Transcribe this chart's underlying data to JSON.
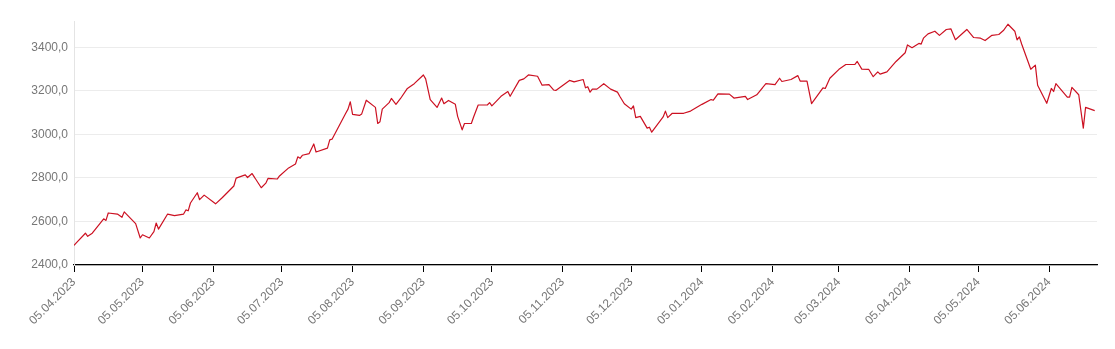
{
  "chart_data": {
    "type": "line",
    "color": "#cc1122",
    "marker": "none",
    "line_style": "solid",
    "grid": "y",
    "x": [
      "2023-04-05",
      "2023-04-06",
      "2023-04-10",
      "2023-04-11",
      "2023-04-13",
      "2023-04-18",
      "2023-04-19",
      "2023-04-20",
      "2023-04-24",
      "2023-04-26",
      "2023-04-27",
      "2023-05-02",
      "2023-05-04",
      "2023-05-05",
      "2023-05-08",
      "2023-05-10",
      "2023-05-11",
      "2023-05-12",
      "2023-05-16",
      "2023-05-19",
      "2023-05-23",
      "2023-05-24",
      "2023-05-25",
      "2023-05-26",
      "2023-05-29",
      "2023-05-30",
      "2023-06-01",
      "2023-06-06",
      "2023-06-09",
      "2023-06-14",
      "2023-06-15",
      "2023-06-19",
      "2023-06-20",
      "2023-06-22",
      "2023-06-26",
      "2023-06-28",
      "2023-06-29",
      "2023-07-03",
      "2023-07-04",
      "2023-07-08",
      "2023-07-11",
      "2023-07-12",
      "2023-07-13",
      "2023-07-14",
      "2023-07-17",
      "2023-07-19",
      "2023-07-20",
      "2023-07-25",
      "2023-07-26",
      "2023-07-27",
      "2023-08-02",
      "2023-08-03",
      "2023-08-04",
      "2023-08-05",
      "2023-08-08",
      "2023-08-09",
      "2023-08-11",
      "2023-08-15",
      "2023-08-16",
      "2023-08-17",
      "2023-08-18",
      "2023-08-21",
      "2023-08-22",
      "2023-08-24",
      "2023-08-26",
      "2023-08-29",
      "2023-09-01",
      "2023-09-05",
      "2023-09-06",
      "2023-09-08",
      "2023-09-11",
      "2023-09-13",
      "2023-09-14",
      "2023-09-16",
      "2023-09-19",
      "2023-09-20",
      "2023-09-22",
      "2023-09-23",
      "2023-09-26",
      "2023-09-27",
      "2023-09-29",
      "2023-10-03",
      "2023-10-04",
      "2023-10-05",
      "2023-10-09",
      "2023-10-12",
      "2023-10-13",
      "2023-10-17",
      "2023-10-19",
      "2023-10-21",
      "2023-10-25",
      "2023-10-27",
      "2023-10-30",
      "2023-11-01",
      "2023-11-02",
      "2023-11-08",
      "2023-11-10",
      "2023-11-14",
      "2023-11-15",
      "2023-11-16",
      "2023-11-17",
      "2023-11-18",
      "2023-11-20",
      "2023-11-23",
      "2023-11-26",
      "2023-11-29",
      "2023-11-30",
      "2023-12-02",
      "2023-12-05",
      "2023-12-06",
      "2023-12-07",
      "2023-12-09",
      "2023-12-12",
      "2023-12-13",
      "2023-12-14",
      "2023-12-19",
      "2023-12-20",
      "2023-12-21",
      "2023-12-23",
      "2023-12-28",
      "2023-12-31",
      "2024-01-05",
      "2024-01-09",
      "2024-01-10",
      "2024-01-12",
      "2024-01-16",
      "2024-01-17",
      "2024-01-19",
      "2024-01-24",
      "2024-01-25",
      "2024-01-29",
      "2024-02-02",
      "2024-02-06",
      "2024-02-08",
      "2024-02-09",
      "2024-02-13",
      "2024-02-16",
      "2024-02-17",
      "2024-02-20",
      "2024-02-22",
      "2024-02-27",
      "2024-02-28",
      "2024-03-01",
      "2024-03-05",
      "2024-03-08",
      "2024-03-12",
      "2024-03-13",
      "2024-03-15",
      "2024-03-18",
      "2024-03-20",
      "2024-03-22",
      "2024-03-23",
      "2024-03-26",
      "2024-03-30",
      "2024-04-03",
      "2024-04-04",
      "2024-04-06",
      "2024-04-09",
      "2024-04-10",
      "2024-04-11",
      "2024-04-13",
      "2024-04-16",
      "2024-04-18",
      "2024-04-21",
      "2024-04-23",
      "2024-04-25",
      "2024-04-30",
      "2024-05-03",
      "2024-05-06",
      "2024-05-08",
      "2024-05-11",
      "2024-05-14",
      "2024-05-16",
      "2024-05-18",
      "2024-05-21",
      "2024-05-22",
      "2024-05-23",
      "2024-05-24",
      "2024-05-28",
      "2024-05-30",
      "2024-05-31",
      "2024-06-04",
      "2024-06-06",
      "2024-06-07",
      "2024-06-08",
      "2024-06-13",
      "2024-06-14",
      "2024-06-15",
      "2024-06-18",
      "2024-06-20",
      "2024-06-21",
      "2024-06-25"
    ],
    "values": [
      2490,
      2502,
      2546,
      2532,
      2546,
      2612,
      2605,
      2639,
      2634,
      2619,
      2644,
      2590,
      2524,
      2539,
      2524,
      2553,
      2593,
      2565,
      2634,
      2627,
      2634,
      2653,
      2649,
      2685,
      2732,
      2700,
      2721,
      2681,
      2710,
      2763,
      2799,
      2814,
      2802,
      2820,
      2755,
      2776,
      2798,
      2795,
      2809,
      2846,
      2864,
      2897,
      2890,
      2904,
      2912,
      2956,
      2919,
      2937,
      2975,
      2978,
      3097,
      3116,
      3150,
      3092,
      3087,
      3094,
      3157,
      3124,
      3050,
      3058,
      3116,
      3146,
      3165,
      3138,
      3165,
      3211,
      3233,
      3273,
      3255,
      3160,
      3124,
      3167,
      3141,
      3156,
      3138,
      3083,
      3021,
      3050,
      3050,
      3080,
      3135,
      3135,
      3146,
      3131,
      3175,
      3197,
      3175,
      3248,
      3255,
      3273,
      3267,
      3226,
      3229,
      3204,
      3202,
      3248,
      3241,
      3252,
      3214,
      3219,
      3194,
      3208,
      3208,
      3233,
      3208,
      3194,
      3175,
      3141,
      3116,
      3131,
      3077,
      3083,
      3029,
      3033,
      3010,
      3080,
      3107,
      3077,
      3097,
      3097,
      3107,
      3138,
      3160,
      3157,
      3186,
      3185,
      3185,
      3167,
      3175,
      3160,
      3182,
      3233,
      3229,
      3258,
      3243,
      3252,
      3270,
      3245,
      3245,
      3141,
      3214,
      3211,
      3258,
      3299,
      3321,
      3322,
      3335,
      3300,
      3299,
      3265,
      3287,
      3277,
      3287,
      3335,
      3375,
      3411,
      3398,
      3418,
      3415,
      3442,
      3462,
      3474,
      3455,
      3482,
      3485,
      3435,
      3482,
      3445,
      3442,
      3431,
      3455,
      3459,
      3477,
      3506,
      3474,
      3434,
      3448,
      3415,
      3299,
      3318,
      3226,
      3143,
      3211,
      3197,
      3233,
      3171,
      3171,
      3216,
      3182,
      3029,
      3124,
      3109
    ],
    "xlim": [
      "2023-04-05",
      "2024-06-26"
    ],
    "xticks": [
      {
        "value": "2023-04-05",
        "label": "05.04.2023"
      },
      {
        "value": "2023-05-05",
        "label": "05.05.2023"
      },
      {
        "value": "2023-06-05",
        "label": "05.06.2023"
      },
      {
        "value": "2023-07-05",
        "label": "05.07.2023"
      },
      {
        "value": "2023-08-05",
        "label": "05.08.2023"
      },
      {
        "value": "2023-09-05",
        "label": "05.09.2023"
      },
      {
        "value": "2023-10-05",
        "label": "05.10.2023"
      },
      {
        "value": "2023-11-05",
        "label": "05.11.2023"
      },
      {
        "value": "2023-12-05",
        "label": "05.12.2023"
      },
      {
        "value": "2024-01-05",
        "label": "05.01.2024"
      },
      {
        "value": "2024-02-05",
        "label": "05.02.2024"
      },
      {
        "value": "2024-03-05",
        "label": "05.03.2024"
      },
      {
        "value": "2024-04-05",
        "label": "05.04.2024"
      },
      {
        "value": "2024-05-05",
        "label": "05.05.2024"
      },
      {
        "value": "2024-06-05",
        "label": "05.06.2024"
      }
    ],
    "ylim": [
      2400,
      3520
    ],
    "yticks": [
      {
        "value": 2400,
        "label": "2400,0"
      },
      {
        "value": 2600,
        "label": "2600,0"
      },
      {
        "value": 2800,
        "label": "2800,0"
      },
      {
        "value": 3000,
        "label": "3000,0"
      },
      {
        "value": 3200,
        "label": "3200,0"
      },
      {
        "value": 3400,
        "label": "3400,0"
      }
    ]
  }
}
